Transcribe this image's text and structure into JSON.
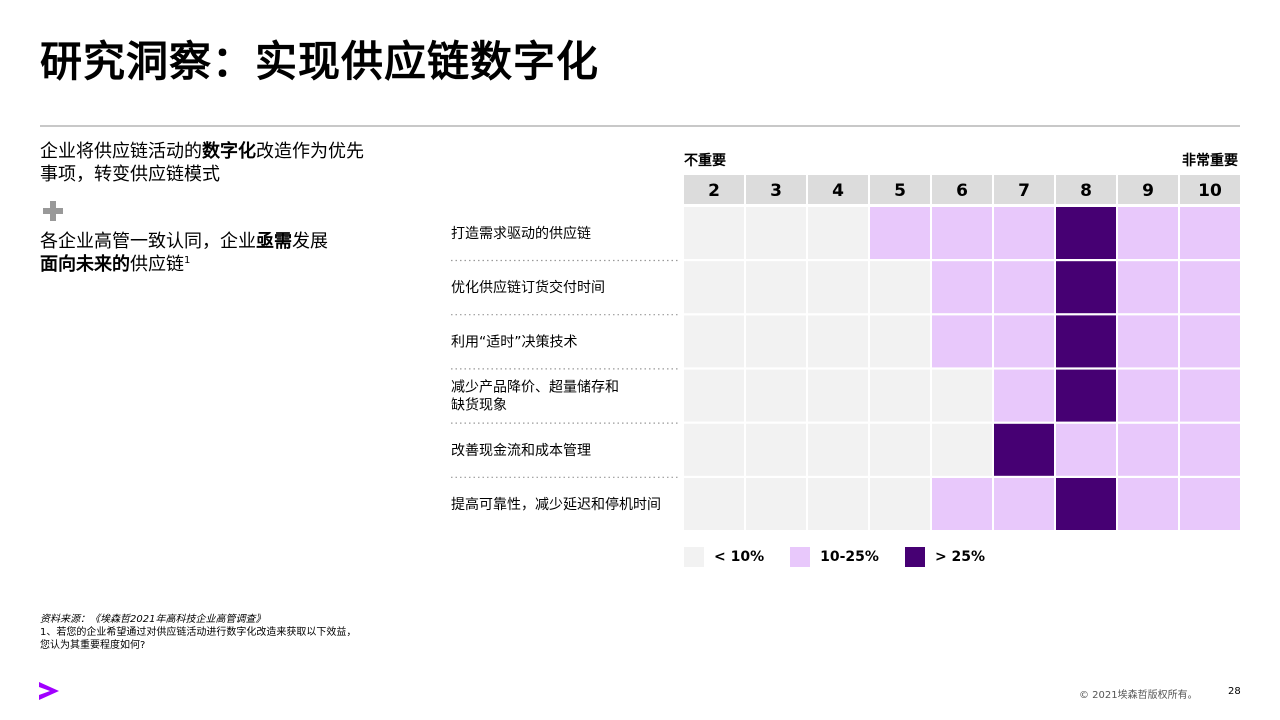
{
  "title": "研究洞察：实现供应链数字化",
  "left": {
    "p1_pre": "企业将供应链活动的",
    "p1_bold": "数字化",
    "p1_post": "改造作为优先事项，转变供应链模式",
    "p2_pre": "各企业高管一致认同，企业",
    "p2_bold1": "亟需",
    "p2_mid": "发展",
    "p2_bold2": "面向未来的",
    "p2_post": "供应链",
    "p2_sup": "1"
  },
  "scale": {
    "low": "不重要",
    "high": "非常重要"
  },
  "colors": {
    "low": "#f2f2f2",
    "mid": "#e8c8fb",
    "high": "#460073",
    "header": "#dcdcdc",
    "dots": "#9a9a9a"
  },
  "chart_data": {
    "type": "heatmap",
    "columns": [
      "2",
      "3",
      "4",
      "5",
      "6",
      "7",
      "8",
      "9",
      "10"
    ],
    "rows": [
      {
        "label": "打造需求驱动的供应链",
        "levels": [
          0,
          0,
          0,
          1,
          1,
          1,
          2,
          1,
          1
        ]
      },
      {
        "label": "优化供应链订货交付时间",
        "levels": [
          0,
          0,
          0,
          0,
          1,
          1,
          2,
          1,
          1
        ]
      },
      {
        "label": "利用“适时”决策技术",
        "levels": [
          0,
          0,
          0,
          0,
          1,
          1,
          2,
          1,
          1
        ]
      },
      {
        "label": "减少产品降价、超量储存和\n缺货现象",
        "levels": [
          0,
          0,
          0,
          0,
          0,
          1,
          2,
          1,
          1
        ]
      },
      {
        "label": "改善现金流和成本管理",
        "levels": [
          0,
          0,
          0,
          0,
          0,
          2,
          1,
          1,
          1
        ]
      },
      {
        "label": "提高可靠性，减少延迟和停机时间",
        "levels": [
          0,
          0,
          0,
          0,
          1,
          1,
          2,
          1,
          1
        ]
      }
    ],
    "legend": [
      "< 10%",
      "10-25%",
      "> 25%"
    ]
  },
  "footnote": {
    "source": "资料来源：《埃森哲2021年高科技企业高管调查》",
    "line1": "1、若您的企业希望通过对供应链活动进行数字化改造来获取以下效益，",
    "line2": "您认为其重要程度如何?"
  },
  "copyright": "© 2021埃森哲版权所有。",
  "page_number": "28"
}
